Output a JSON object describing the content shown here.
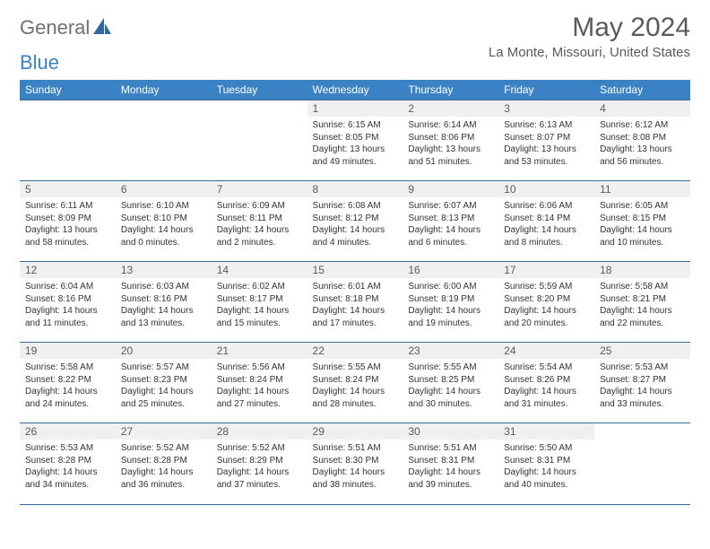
{
  "brand": {
    "part1": "General",
    "part2": "Blue",
    "mark_color": "#2d6aa3"
  },
  "title": "May 2024",
  "location": "La Monte, Missouri, United States",
  "colors": {
    "header_bg": "#3b82c4",
    "rule": "#3b6a94",
    "daynum_bg": "#eef0f2"
  },
  "day_names": [
    "Sunday",
    "Monday",
    "Tuesday",
    "Wednesday",
    "Thursday",
    "Friday",
    "Saturday"
  ],
  "weeks": [
    [
      {
        "empty": true
      },
      {
        "empty": true
      },
      {
        "empty": true
      },
      {
        "num": "1",
        "sunrise": "Sunrise: 6:15 AM",
        "sunset": "Sunset: 8:05 PM",
        "day1": "Daylight: 13 hours",
        "day2": "and 49 minutes."
      },
      {
        "num": "2",
        "sunrise": "Sunrise: 6:14 AM",
        "sunset": "Sunset: 8:06 PM",
        "day1": "Daylight: 13 hours",
        "day2": "and 51 minutes."
      },
      {
        "num": "3",
        "sunrise": "Sunrise: 6:13 AM",
        "sunset": "Sunset: 8:07 PM",
        "day1": "Daylight: 13 hours",
        "day2": "and 53 minutes."
      },
      {
        "num": "4",
        "sunrise": "Sunrise: 6:12 AM",
        "sunset": "Sunset: 8:08 PM",
        "day1": "Daylight: 13 hours",
        "day2": "and 56 minutes."
      }
    ],
    [
      {
        "num": "5",
        "sunrise": "Sunrise: 6:11 AM",
        "sunset": "Sunset: 8:09 PM",
        "day1": "Daylight: 13 hours",
        "day2": "and 58 minutes."
      },
      {
        "num": "6",
        "sunrise": "Sunrise: 6:10 AM",
        "sunset": "Sunset: 8:10 PM",
        "day1": "Daylight: 14 hours",
        "day2": "and 0 minutes."
      },
      {
        "num": "7",
        "sunrise": "Sunrise: 6:09 AM",
        "sunset": "Sunset: 8:11 PM",
        "day1": "Daylight: 14 hours",
        "day2": "and 2 minutes."
      },
      {
        "num": "8",
        "sunrise": "Sunrise: 6:08 AM",
        "sunset": "Sunset: 8:12 PM",
        "day1": "Daylight: 14 hours",
        "day2": "and 4 minutes."
      },
      {
        "num": "9",
        "sunrise": "Sunrise: 6:07 AM",
        "sunset": "Sunset: 8:13 PM",
        "day1": "Daylight: 14 hours",
        "day2": "and 6 minutes."
      },
      {
        "num": "10",
        "sunrise": "Sunrise: 6:06 AM",
        "sunset": "Sunset: 8:14 PM",
        "day1": "Daylight: 14 hours",
        "day2": "and 8 minutes."
      },
      {
        "num": "11",
        "sunrise": "Sunrise: 6:05 AM",
        "sunset": "Sunset: 8:15 PM",
        "day1": "Daylight: 14 hours",
        "day2": "and 10 minutes."
      }
    ],
    [
      {
        "num": "12",
        "sunrise": "Sunrise: 6:04 AM",
        "sunset": "Sunset: 8:16 PM",
        "day1": "Daylight: 14 hours",
        "day2": "and 11 minutes."
      },
      {
        "num": "13",
        "sunrise": "Sunrise: 6:03 AM",
        "sunset": "Sunset: 8:16 PM",
        "day1": "Daylight: 14 hours",
        "day2": "and 13 minutes."
      },
      {
        "num": "14",
        "sunrise": "Sunrise: 6:02 AM",
        "sunset": "Sunset: 8:17 PM",
        "day1": "Daylight: 14 hours",
        "day2": "and 15 minutes."
      },
      {
        "num": "15",
        "sunrise": "Sunrise: 6:01 AM",
        "sunset": "Sunset: 8:18 PM",
        "day1": "Daylight: 14 hours",
        "day2": "and 17 minutes."
      },
      {
        "num": "16",
        "sunrise": "Sunrise: 6:00 AM",
        "sunset": "Sunset: 8:19 PM",
        "day1": "Daylight: 14 hours",
        "day2": "and 19 minutes."
      },
      {
        "num": "17",
        "sunrise": "Sunrise: 5:59 AM",
        "sunset": "Sunset: 8:20 PM",
        "day1": "Daylight: 14 hours",
        "day2": "and 20 minutes."
      },
      {
        "num": "18",
        "sunrise": "Sunrise: 5:58 AM",
        "sunset": "Sunset: 8:21 PM",
        "day1": "Daylight: 14 hours",
        "day2": "and 22 minutes."
      }
    ],
    [
      {
        "num": "19",
        "sunrise": "Sunrise: 5:58 AM",
        "sunset": "Sunset: 8:22 PM",
        "day1": "Daylight: 14 hours",
        "day2": "and 24 minutes."
      },
      {
        "num": "20",
        "sunrise": "Sunrise: 5:57 AM",
        "sunset": "Sunset: 8:23 PM",
        "day1": "Daylight: 14 hours",
        "day2": "and 25 minutes."
      },
      {
        "num": "21",
        "sunrise": "Sunrise: 5:56 AM",
        "sunset": "Sunset: 8:24 PM",
        "day1": "Daylight: 14 hours",
        "day2": "and 27 minutes."
      },
      {
        "num": "22",
        "sunrise": "Sunrise: 5:55 AM",
        "sunset": "Sunset: 8:24 PM",
        "day1": "Daylight: 14 hours",
        "day2": "and 28 minutes."
      },
      {
        "num": "23",
        "sunrise": "Sunrise: 5:55 AM",
        "sunset": "Sunset: 8:25 PM",
        "day1": "Daylight: 14 hours",
        "day2": "and 30 minutes."
      },
      {
        "num": "24",
        "sunrise": "Sunrise: 5:54 AM",
        "sunset": "Sunset: 8:26 PM",
        "day1": "Daylight: 14 hours",
        "day2": "and 31 minutes."
      },
      {
        "num": "25",
        "sunrise": "Sunrise: 5:53 AM",
        "sunset": "Sunset: 8:27 PM",
        "day1": "Daylight: 14 hours",
        "day2": "and 33 minutes."
      }
    ],
    [
      {
        "num": "26",
        "sunrise": "Sunrise: 5:53 AM",
        "sunset": "Sunset: 8:28 PM",
        "day1": "Daylight: 14 hours",
        "day2": "and 34 minutes."
      },
      {
        "num": "27",
        "sunrise": "Sunrise: 5:52 AM",
        "sunset": "Sunset: 8:28 PM",
        "day1": "Daylight: 14 hours",
        "day2": "and 36 minutes."
      },
      {
        "num": "28",
        "sunrise": "Sunrise: 5:52 AM",
        "sunset": "Sunset: 8:29 PM",
        "day1": "Daylight: 14 hours",
        "day2": "and 37 minutes."
      },
      {
        "num": "29",
        "sunrise": "Sunrise: 5:51 AM",
        "sunset": "Sunset: 8:30 PM",
        "day1": "Daylight: 14 hours",
        "day2": "and 38 minutes."
      },
      {
        "num": "30",
        "sunrise": "Sunrise: 5:51 AM",
        "sunset": "Sunset: 8:31 PM",
        "day1": "Daylight: 14 hours",
        "day2": "and 39 minutes."
      },
      {
        "num": "31",
        "sunrise": "Sunrise: 5:50 AM",
        "sunset": "Sunset: 8:31 PM",
        "day1": "Daylight: 14 hours",
        "day2": "and 40 minutes."
      },
      {
        "empty": true
      }
    ]
  ]
}
